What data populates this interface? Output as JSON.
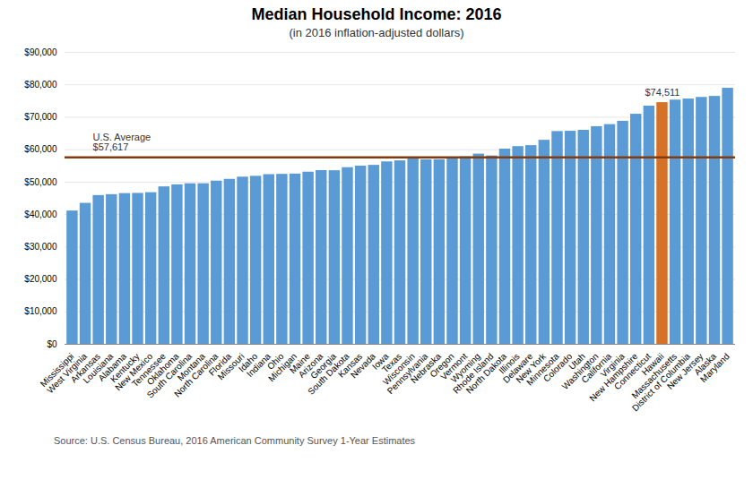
{
  "chart_data": {
    "type": "bar",
    "title": "Median Household Income: 2016",
    "subtitle": "(in 2016 inflation-adjusted dollars)",
    "caption": "Source: U.S. Census Bureau, 2016 American Community Survey 1-Year Estimates",
    "categories": [
      "Mississippi",
      "West Virginia",
      "Arkansas",
      "Louisiana",
      "Alabama",
      "Kentucky",
      "New Mexico",
      "Tennessee",
      "Oklahoma",
      "South Carolina",
      "Montana",
      "North Carolina",
      "Florida",
      "Missouri",
      "Idaho",
      "Indiana",
      "Ohio",
      "Michigan",
      "Maine",
      "Arizona",
      "Georgia",
      "South Dakota",
      "Kansas",
      "Nevada",
      "Iowa",
      "Texas",
      "Wisconsin",
      "Pennsylvania",
      "Nebraska",
      "Oregon",
      "Vermont",
      "Wyoming",
      "Rhode Island",
      "North Dakota",
      "Illinois",
      "Delaware",
      "New York",
      "Minnesota",
      "Colorado",
      "Utah",
      "Washington",
      "California",
      "Virginia",
      "New Hampshire",
      "Connecticut",
      "Hawaii",
      "Massachusetts",
      "District of Columbia",
      "New Jersey",
      "Alaska",
      "Maryland"
    ],
    "values": [
      41099,
      43469,
      45869,
      46145,
      46472,
      46535,
      46744,
      48547,
      49176,
      49501,
      49509,
      50320,
      50860,
      51542,
      51807,
      52314,
      52407,
      52492,
      53079,
      53558,
      53527,
      54467,
      54935,
      55180,
      56247,
      56565,
      57458,
      56907,
      56927,
      57532,
      57808,
      58650,
      58073,
      60184,
      60960,
      61255,
      62909,
      65599,
      65685,
      65977,
      67106,
      67739,
      68766,
      70936,
      73433,
      74511,
      75297,
      75628,
      76126,
      76440,
      78945
    ],
    "colors": [
      "#5B9BD5",
      "#5B9BD5",
      "#5B9BD5",
      "#5B9BD5",
      "#5B9BD5",
      "#5B9BD5",
      "#5B9BD5",
      "#5B9BD5",
      "#5B9BD5",
      "#5B9BD5",
      "#5B9BD5",
      "#5B9BD5",
      "#5B9BD5",
      "#5B9BD5",
      "#5B9BD5",
      "#5B9BD5",
      "#5B9BD5",
      "#5B9BD5",
      "#5B9BD5",
      "#5B9BD5",
      "#5B9BD5",
      "#5B9BD5",
      "#5B9BD5",
      "#5B9BD5",
      "#5B9BD5",
      "#5B9BD5",
      "#5B9BD5",
      "#5B9BD5",
      "#5B9BD5",
      "#5B9BD5",
      "#5B9BD5",
      "#5B9BD5",
      "#5B9BD5",
      "#5B9BD5",
      "#5B9BD5",
      "#5B9BD5",
      "#5B9BD5",
      "#5B9BD5",
      "#5B9BD5",
      "#5B9BD5",
      "#5B9BD5",
      "#5B9BD5",
      "#5B9BD5",
      "#5B9BD5",
      "#5B9BD5",
      "#D67228",
      "#5B9BD5",
      "#5B9BD5",
      "#5B9BD5",
      "#5B9BD5",
      "#5B9BD5"
    ],
    "reference_line": {
      "value": 57617,
      "label": "U.S. Average\n$57,617",
      "color": "#843C0C"
    },
    "annotations": [
      {
        "text": "$74,511",
        "category": "Hawaii",
        "value": 74511
      }
    ],
    "ylim": [
      0,
      90000
    ],
    "yticks": [
      {
        "value": 0,
        "label": "$0"
      },
      {
        "value": 10000,
        "label": "$10,000"
      },
      {
        "value": 20000,
        "label": "$20,000"
      },
      {
        "value": 30000,
        "label": "$30,000"
      },
      {
        "value": 40000,
        "label": "$40,000"
      },
      {
        "value": 50000,
        "label": "$50,000"
      },
      {
        "value": 60000,
        "label": "$60,000"
      },
      {
        "value": 70000,
        "label": "$70,000"
      },
      {
        "value": 80000,
        "label": "$80,000"
      },
      {
        "value": 90000,
        "label": "$90,000"
      }
    ],
    "grid": true
  }
}
